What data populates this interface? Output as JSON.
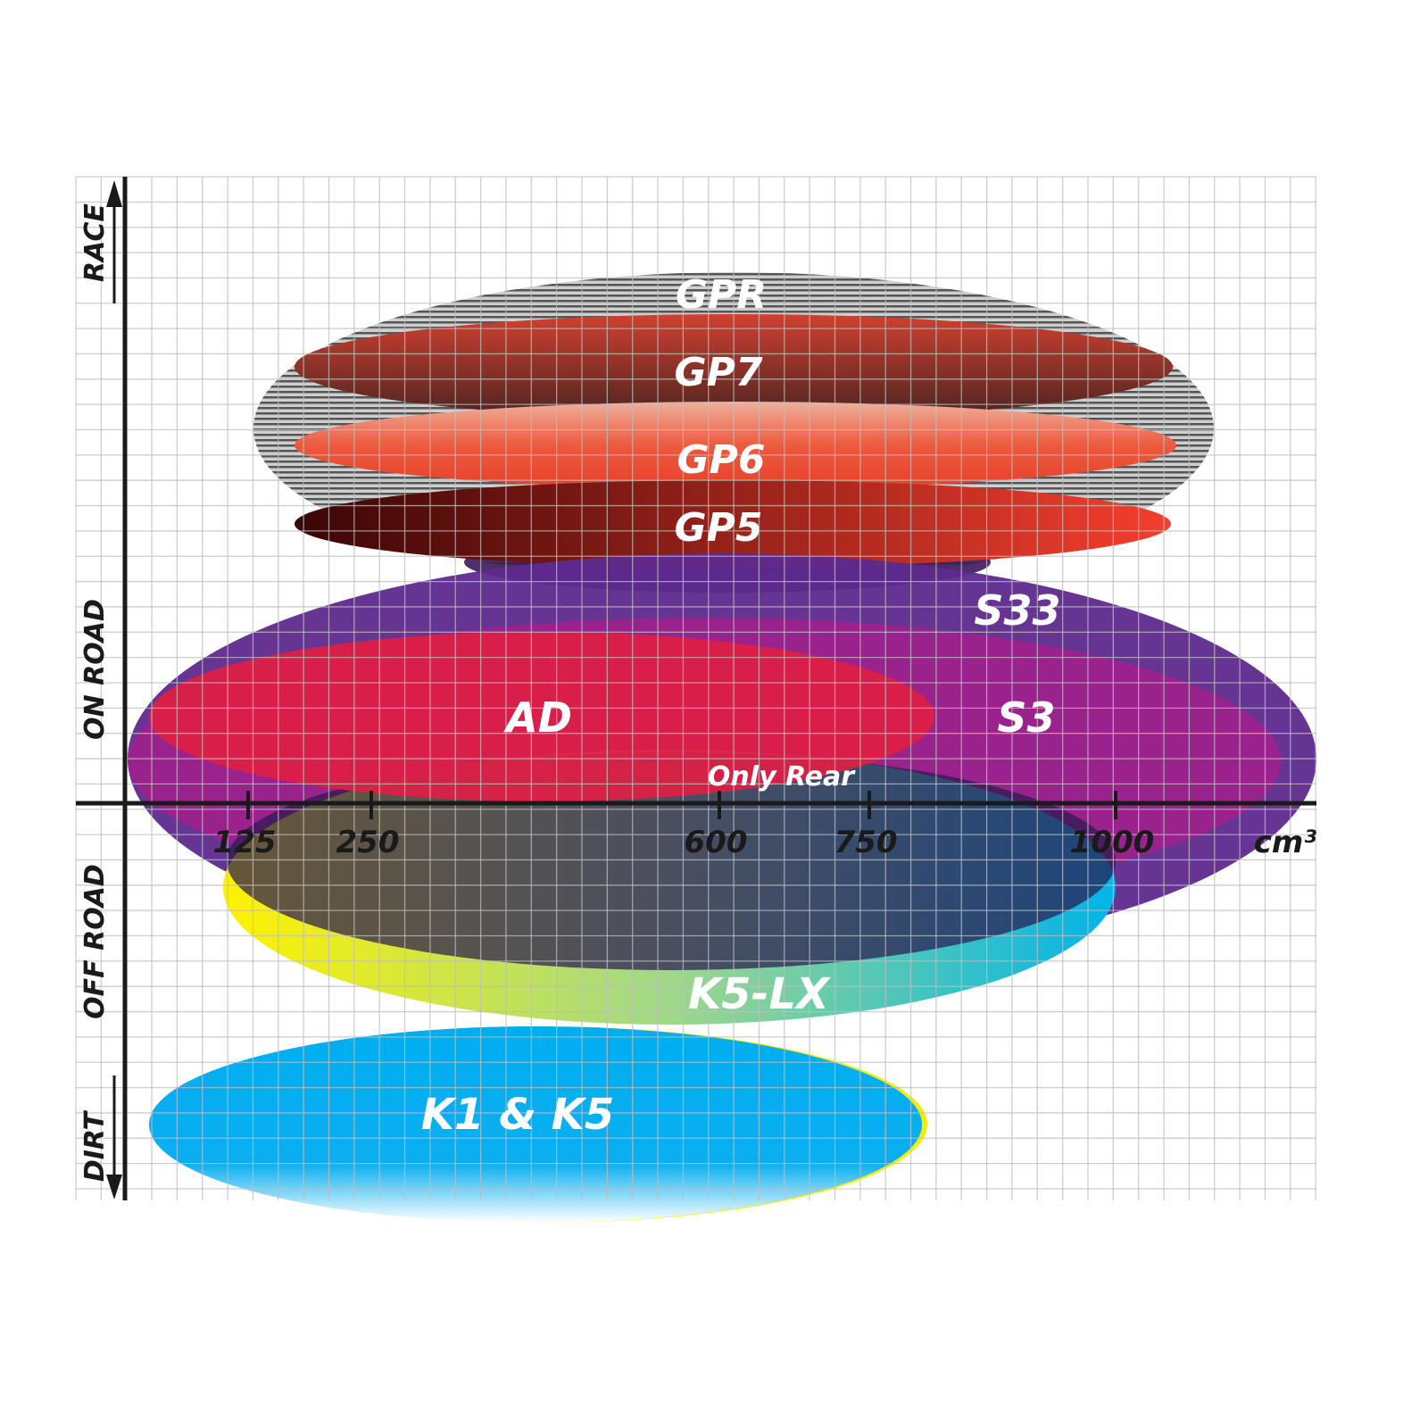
{
  "chart_data": {
    "type": "positioning-ellipses",
    "x_axis": {
      "tick_labels": [
        "125",
        "250",
        "600",
        "750",
        "1000"
      ],
      "unit": "cm³"
    },
    "y_axis": {
      "labels": [
        "RACE",
        "ON ROAD",
        "OFF ROAD",
        "DIRT"
      ]
    },
    "grid": true,
    "tires": [
      {
        "name": "GPR",
        "color": "#8a8a8a"
      },
      {
        "name": "GP7",
        "color": "#8b3a2a"
      },
      {
        "name": "GP6",
        "color": "#e8442c"
      },
      {
        "name": "GP5",
        "color": "#c0281e"
      },
      {
        "name": "S33",
        "color": "#5e2a8e"
      },
      {
        "name": "S3",
        "color": "#a0208c"
      },
      {
        "name": "AD",
        "color": "#dc2046"
      },
      {
        "name": "K5-LX",
        "color": "#00b4e6"
      },
      {
        "name": "K1 & K5",
        "color": "#00aeef"
      }
    ],
    "annotation": "Only Rear"
  }
}
